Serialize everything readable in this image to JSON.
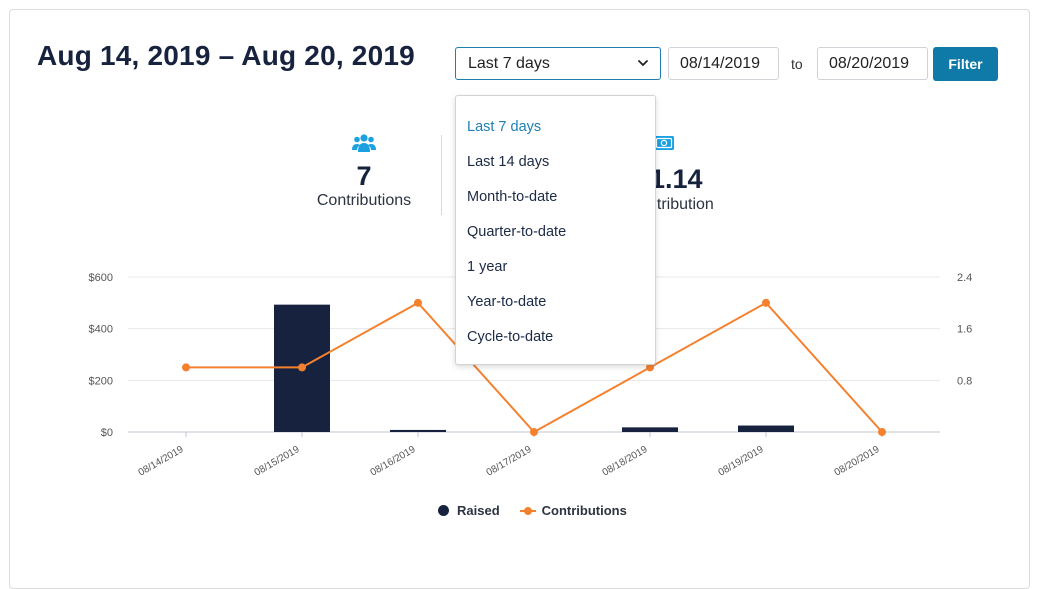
{
  "header": {
    "title": "Aug 14, 2019 – Aug 20, 2019",
    "range_select": {
      "value": "Last 7 days"
    },
    "date_from": "08/14/2019",
    "to_label": "to",
    "date_to": "08/20/2019",
    "filter_label": "Filter"
  },
  "dropdown": {
    "options": [
      "Last 7 days",
      "Last 14 days",
      "Month-to-date",
      "Quarter-to-date",
      "1 year",
      "Year-to-date",
      "Cycle-to-date"
    ],
    "selected_index": 0
  },
  "stats": {
    "contributions": {
      "value": "7",
      "label": "Contributions",
      "icon": "users-icon"
    },
    "average": {
      "value_partial": "1.14",
      "label_partial": "ntribution",
      "icon": "money-icon"
    }
  },
  "colors": {
    "accent": "#1d7fb4",
    "filter_button": "#0f79a8",
    "bar": "#17223f",
    "line": "#f5812e",
    "icon": "#1ba1e2"
  },
  "chart_data": {
    "type": "bar",
    "categories": [
      "08/14/2019",
      "08/15/2019",
      "08/16/2019",
      "08/17/2019",
      "08/18/2019",
      "08/19/2019",
      "08/20/2019"
    ],
    "series": [
      {
        "name": "Raised",
        "type": "bar",
        "axis": "left",
        "values": [
          0,
          493,
          8,
          0,
          18,
          25,
          0
        ]
      },
      {
        "name": "Contributions",
        "type": "line",
        "axis": "right",
        "values": [
          1,
          1,
          2,
          0,
          1,
          2,
          0
        ]
      }
    ],
    "y_left": {
      "ticks": [
        "$0",
        "$200",
        "$400",
        "$600"
      ],
      "range": [
        0,
        600
      ]
    },
    "y_right": {
      "ticks": [
        "0.8",
        "1.6",
        "2.4"
      ],
      "range": [
        0,
        2.4
      ]
    },
    "grid": true,
    "legend": "bottom-center"
  }
}
